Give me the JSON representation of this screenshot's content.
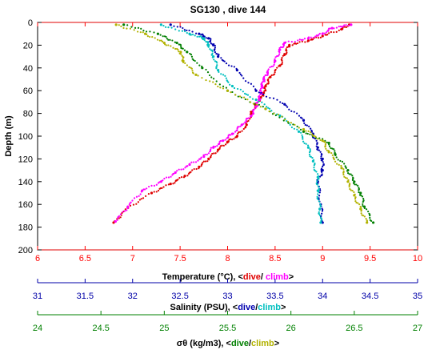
{
  "chart_data": {
    "type": "scatter",
    "title": "SG130 , dive 144",
    "ylabel": "Depth (m)",
    "ylim": [
      0,
      200
    ],
    "y_ticks": [
      "0",
      "20",
      "40",
      "60",
      "80",
      "100",
      "120",
      "140",
      "160",
      "180",
      "200"
    ],
    "y_reversed": true,
    "grid": false,
    "axes": [
      {
        "id": "temperature",
        "label_prefix": "Temperature (°C), <",
        "dive_word": "dive",
        "separator": "/ ",
        "climb_word": "climb",
        "label_suffix": ">",
        "range": [
          6,
          10
        ],
        "tick_labels": [
          "6",
          "6.5",
          "7",
          "7.5",
          "8",
          "8.5",
          "9",
          "9.5",
          "10"
        ],
        "color": "#ff0000"
      },
      {
        "id": "salinity",
        "label_prefix": "Salinity (PSU), <",
        "dive_word": "dive",
        "separator": "/",
        "climb_word": "climb",
        "label_suffix": ">",
        "range": [
          31,
          35
        ],
        "tick_labels": [
          "31",
          "31.5",
          "32",
          "32.5",
          "33",
          "33.5",
          "34",
          "34.5",
          "35"
        ],
        "color": "#0000a8"
      },
      {
        "id": "sigma",
        "label_prefix": "σθ (kg/m3), <",
        "dive_word": "dive",
        "separator": "/",
        "climb_word": "climb",
        "label_suffix": ">",
        "range": [
          24,
          27
        ],
        "tick_labels": [
          "24",
          "24.5",
          "25",
          "25.5",
          "26",
          "26.5",
          "27"
        ],
        "color": "#008000"
      }
    ],
    "series": [
      {
        "name": "Temperature dive",
        "axis": "temperature",
        "color": "#e00000",
        "x": [
          9.28,
          9.2,
          9.0,
          8.85,
          8.65,
          8.6,
          8.55,
          8.45,
          8.4,
          8.38,
          8.35,
          8.3,
          8.25,
          8.2,
          8.1,
          8.0,
          7.9,
          7.8,
          7.7,
          7.55,
          7.4,
          7.2,
          6.95,
          6.8
        ],
        "y": [
          2,
          6,
          12,
          16,
          20,
          28,
          38,
          48,
          56,
          62,
          66,
          72,
          80,
          90,
          100,
          105,
          112,
          120,
          127,
          135,
          142,
          150,
          163,
          176
        ]
      },
      {
        "name": "Temperature climb",
        "axis": "temperature",
        "color": "#ff00ff",
        "x": [
          9.3,
          9.1,
          9.0,
          8.85,
          8.6,
          8.55,
          8.5,
          8.42,
          8.38,
          8.36,
          8.35,
          8.33,
          8.3,
          8.25,
          8.15,
          8.05,
          7.95,
          7.85,
          7.75,
          7.6,
          7.45,
          7.3,
          7.1,
          6.95,
          6.82
        ],
        "y": [
          2,
          5,
          10,
          14,
          18,
          24,
          34,
          44,
          50,
          56,
          62,
          68,
          74,
          82,
          90,
          98,
          104,
          110,
          118,
          125,
          132,
          140,
          148,
          162,
          175
        ]
      },
      {
        "name": "Salinity dive",
        "axis": "salinity",
        "color": "#0000b0",
        "x": [
          32.4,
          32.7,
          32.8,
          32.85,
          32.9,
          33.1,
          33.3,
          33.6,
          33.8,
          33.9,
          33.95,
          34.0,
          34.0,
          33.95,
          33.98,
          34.0
        ],
        "y": [
          2,
          10,
          14,
          20,
          30,
          42,
          60,
          72,
          86,
          98,
          110,
          120,
          130,
          140,
          160,
          176
        ]
      },
      {
        "name": "Salinity climb",
        "axis": "salinity",
        "color": "#00bfbf",
        "x": [
          32.3,
          32.6,
          32.75,
          32.8,
          32.85,
          32.9,
          33.05,
          33.3,
          33.55,
          33.75,
          33.85,
          33.9,
          33.95,
          33.95,
          33.97,
          33.98
        ],
        "y": [
          2,
          10,
          14,
          20,
          30,
          42,
          56,
          68,
          82,
          96,
          110,
          122,
          136,
          148,
          164,
          176
        ]
      },
      {
        "name": "Sigma dive",
        "axis": "sigma",
        "color": "#007f00",
        "x": [
          24.68,
          24.95,
          25.1,
          25.18,
          25.3,
          25.5,
          25.8,
          26.1,
          26.3,
          26.35,
          26.45,
          26.5,
          26.55,
          26.58,
          26.65
        ],
        "y": [
          2,
          10,
          18,
          26,
          40,
          60,
          76,
          96,
          106,
          116,
          130,
          140,
          150,
          162,
          176
        ]
      },
      {
        "name": "Sigma climb",
        "axis": "sigma",
        "color": "#b2b200",
        "x": [
          24.62,
          24.85,
          25.0,
          25.13,
          25.15,
          25.25,
          25.5,
          25.8,
          26.1,
          26.25,
          26.3,
          26.4,
          26.45,
          26.5,
          26.55,
          26.6
        ],
        "y": [
          2,
          10,
          18,
          26,
          34,
          46,
          60,
          76,
          94,
          104,
          114,
          128,
          140,
          152,
          164,
          176
        ]
      }
    ]
  }
}
